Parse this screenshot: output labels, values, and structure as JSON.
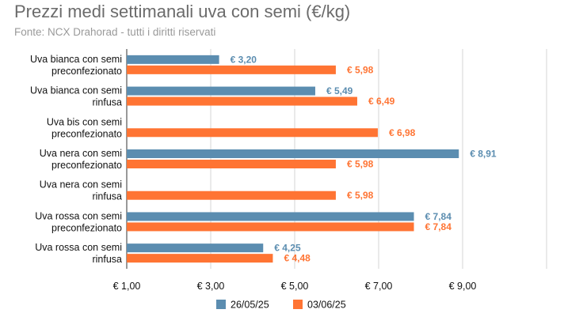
{
  "title": "Prezzi medi settimanali uva con semi (€/kg)",
  "subtitle": "Fonte: NCX Drahorad - tutti i diritti riservati",
  "chart_data": {
    "type": "bar",
    "orientation": "horizontal",
    "categories": [
      [
        "Uva bianca con semi",
        "preconfezionato"
      ],
      [
        "Uva bianca con semi",
        "rinfusa"
      ],
      [
        "Uva bis con semi",
        "preconfezionato"
      ],
      [
        "Uva nera con semi",
        "preconfezionato"
      ],
      [
        "Uva nera con semi",
        "rinfusa"
      ],
      [
        "Uva rossa con semi",
        "preconfezionato"
      ],
      [
        "Uva rossa con semi",
        "rinfusa"
      ]
    ],
    "series": [
      {
        "name": "26/05/25",
        "color": "#5b8db0",
        "values": [
          3.2,
          5.49,
          null,
          8.91,
          null,
          7.84,
          4.25
        ],
        "labels": [
          "€ 3,20",
          "€ 5,49",
          "",
          "€ 8,91",
          "",
          "€ 7,84",
          "€ 4,25"
        ]
      },
      {
        "name": "03/06/25",
        "color": "#ff7433",
        "values": [
          5.98,
          6.49,
          6.98,
          5.98,
          5.98,
          7.84,
          4.48
        ],
        "labels": [
          "€ 5,98",
          "€ 6,49",
          "€ 6,98",
          "€ 5,98",
          "€ 5,98",
          "€ 7,84",
          "€ 4,48"
        ]
      }
    ],
    "xlim": [
      1,
      11
    ],
    "ticks": [
      1,
      3,
      5,
      7,
      9,
      11
    ],
    "tick_labels": [
      "€ 1,00",
      "€ 3,00",
      "€ 5,00",
      "€ 7,00",
      "€ 9,00",
      ""
    ],
    "grid": true,
    "legend_position": "bottom"
  }
}
